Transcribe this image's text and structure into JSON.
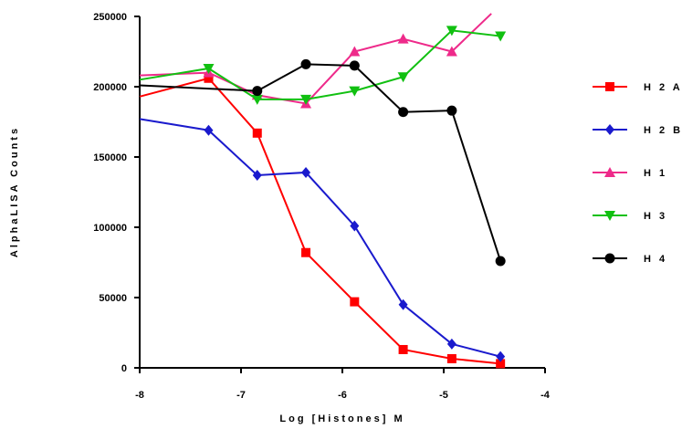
{
  "chart_data": {
    "type": "line",
    "xlabel": "Log [Histones] M",
    "ylabel": "AlphaLISA Counts",
    "xlim": [
      -8,
      -4
    ],
    "ylim": [
      0,
      250000
    ],
    "x_ticks": [
      -8,
      -7,
      -6,
      -5,
      -4
    ],
    "y_ticks": [
      0,
      50000,
      100000,
      150000,
      200000,
      250000
    ],
    "x_tick_labels": [
      "-8",
      "-7",
      "-6",
      "-5",
      "-4"
    ],
    "y_tick_labels": [
      "0",
      "50000",
      "100000",
      "150000",
      "200000",
      "250000"
    ],
    "legend_position": "right",
    "x": [
      -7.32,
      -6.84,
      -6.36,
      -5.88,
      -5.4,
      -4.92,
      -4.44
    ],
    "series": [
      {
        "name": "H2A",
        "color": "#ff0000",
        "marker": "square",
        "curve": [
          [
            -8,
            193000
          ],
          [
            -7.32,
            206000
          ],
          [
            -6.84,
            167000
          ],
          [
            -6.36,
            82000
          ],
          [
            -5.88,
            47000
          ],
          [
            -5.4,
            13000
          ],
          [
            -4.92,
            6500
          ],
          [
            -4.44,
            3000
          ]
        ],
        "values": [
          206000,
          167000,
          82000,
          47000,
          13000,
          6500,
          3000
        ]
      },
      {
        "name": "H2B",
        "color": "#1a1acd",
        "marker": "diamond",
        "curve": [
          [
            -8,
            177000
          ],
          [
            -7.32,
            169000
          ],
          [
            -6.84,
            137000
          ],
          [
            -6.36,
            139000
          ],
          [
            -5.88,
            101000
          ],
          [
            -5.4,
            45000
          ],
          [
            -4.92,
            17000
          ],
          [
            -4.44,
            8000
          ]
        ],
        "values": [
          169000,
          137000,
          139000,
          101000,
          45000,
          17000,
          8000
        ]
      },
      {
        "name": "H1",
        "color": "#ee2a8a",
        "marker": "triangle-up",
        "curve": [
          [
            -8,
            208000
          ],
          [
            -7.32,
            210000
          ],
          [
            -6.84,
            194000
          ],
          [
            -6.36,
            188000
          ],
          [
            -5.88,
            225000
          ],
          [
            -5.4,
            234000
          ],
          [
            -4.92,
            225000
          ],
          [
            -4.53,
            252000
          ]
        ],
        "values": [
          210000,
          194000,
          188000,
          225000,
          234000,
          225000,
          null
        ]
      },
      {
        "name": "H3",
        "color": "#11c011",
        "marker": "triangle-down",
        "curve": [
          [
            -8,
            205000
          ],
          [
            -7.32,
            213000
          ],
          [
            -6.84,
            191000
          ],
          [
            -6.36,
            191000
          ],
          [
            -5.88,
            197000
          ],
          [
            -5.4,
            207000
          ],
          [
            -4.92,
            240000
          ],
          [
            -4.44,
            236000
          ]
        ],
        "values": [
          213000,
          191000,
          191000,
          197000,
          207000,
          240000,
          236000
        ]
      },
      {
        "name": "H4",
        "color": "#000000",
        "marker": "circle",
        "curve": [
          [
            -8,
            201000
          ],
          [
            -6.84,
            197000
          ],
          [
            -6.36,
            216000
          ],
          [
            -5.88,
            215000
          ],
          [
            -5.4,
            182000
          ],
          [
            -4.92,
            183000
          ],
          [
            -4.44,
            76000
          ]
        ],
        "values": [
          null,
          197000,
          216000,
          215000,
          182000,
          183000,
          76000
        ]
      }
    ],
    "legend_labels": [
      "H2A",
      "H2B",
      "H1",
      "H3",
      "H4"
    ],
    "legend_display": [
      "H 2 A",
      "H 2 B",
      "H 1",
      "H 3",
      "H 4"
    ]
  }
}
